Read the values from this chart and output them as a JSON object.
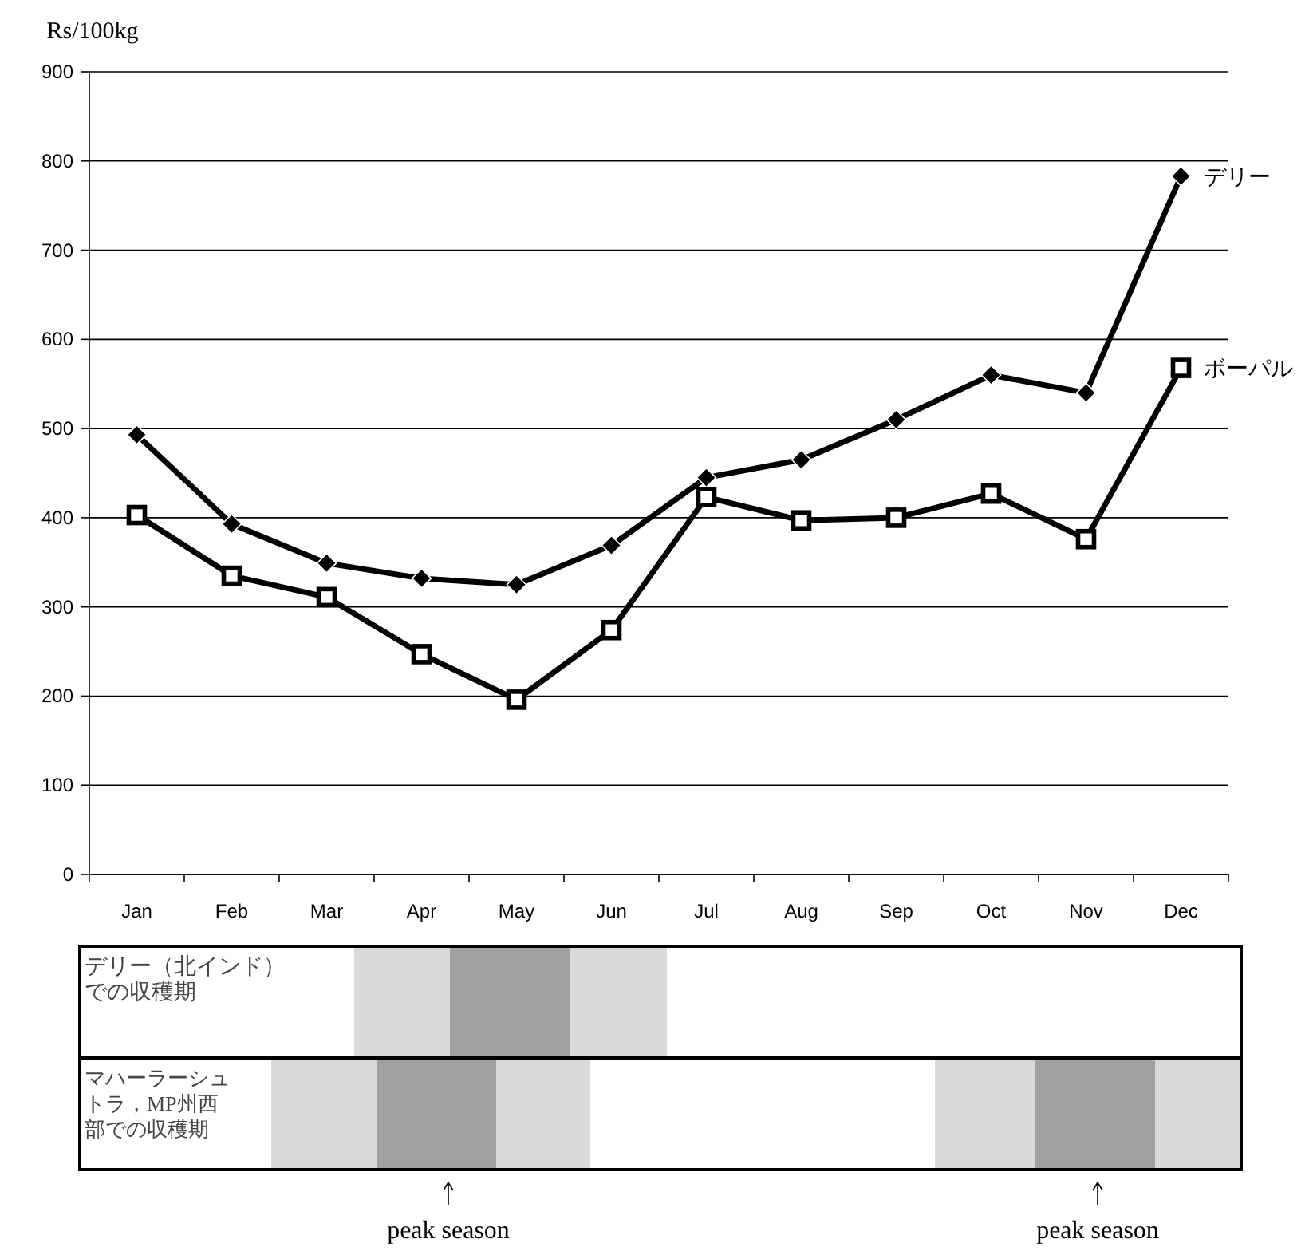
{
  "chart_data": [
    {
      "type": "line",
      "ylabel": "Rs/100kg",
      "categories": [
        "Jan",
        "Feb",
        "Mar",
        "Apr",
        "May",
        "Jun",
        "Jul",
        "Aug",
        "Sep",
        "Oct",
        "Nov",
        "Dec"
      ],
      "series": [
        {
          "name": "デリー",
          "color": "#000000",
          "marker": "diamond",
          "values": [
            493,
            393,
            349,
            332,
            325,
            369,
            445,
            465,
            510,
            560,
            540,
            783
          ]
        },
        {
          "name": "ボーパル",
          "color": "#000000",
          "marker": "square",
          "values": [
            403,
            335,
            311,
            247,
            196,
            274,
            423,
            397,
            400,
            427,
            376,
            568
          ]
        }
      ],
      "ylim": [
        0,
        900
      ],
      "yticks": [
        0,
        100,
        200,
        300,
        400,
        500,
        600,
        700,
        800,
        900
      ],
      "grid": "y",
      "legend": false,
      "line_style": "solid"
    },
    {
      "type": "other",
      "title": "デリー（北インド）での収穫期"
    },
    {
      "type": "other",
      "title": "マハーラーシュトラ，MP州西部での収穫期",
      "annotations": [
        "peak season",
        "peak season"
      ]
    }
  ]
}
